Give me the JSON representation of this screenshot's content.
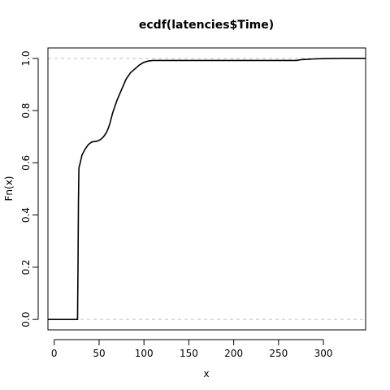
{
  "chart_data": {
    "type": "line",
    "title": "ecdf(latencies$Time)",
    "xlabel": "x",
    "ylabel": "Fn(x)",
    "xlim": [
      -7,
      347
    ],
    "ylim": [
      -0.04,
      1.04
    ],
    "x_ticks": [
      0,
      50,
      100,
      150,
      200,
      250,
      300
    ],
    "x_tick_labels": [
      "0",
      "50",
      "100",
      "150",
      "200",
      "250",
      "300"
    ],
    "y_ticks": [
      0.0,
      0.2,
      0.4,
      0.6,
      0.8,
      1.0
    ],
    "y_tick_labels": [
      "0.0",
      "0.2",
      "0.4",
      "0.6",
      "0.8",
      "1.0"
    ],
    "reference_lines": [
      0,
      1
    ],
    "line_color": "#000000",
    "reference_line_color": "#bebebe",
    "series": [
      {
        "values_xy": [
          [
            -7,
            0.0
          ],
          [
            26,
            0.0
          ],
          [
            26.5,
            0.2
          ],
          [
            27,
            0.45
          ],
          [
            27.5,
            0.58
          ],
          [
            29,
            0.6
          ],
          [
            31,
            0.63
          ],
          [
            34,
            0.65
          ],
          [
            38,
            0.67
          ],
          [
            42,
            0.68
          ],
          [
            48,
            0.683
          ],
          [
            52,
            0.69
          ],
          [
            55,
            0.7
          ],
          [
            58,
            0.715
          ],
          [
            60,
            0.73
          ],
          [
            62,
            0.75
          ],
          [
            65,
            0.79
          ],
          [
            70,
            0.84
          ],
          [
            75,
            0.88
          ],
          [
            80,
            0.92
          ],
          [
            85,
            0.945
          ],
          [
            90,
            0.96
          ],
          [
            95,
            0.975
          ],
          [
            100,
            0.985
          ],
          [
            105,
            0.99
          ],
          [
            110,
            0.992
          ],
          [
            150,
            0.992
          ],
          [
            200,
            0.992
          ],
          [
            250,
            0.992
          ],
          [
            270,
            0.992
          ],
          [
            275,
            0.995
          ],
          [
            290,
            0.998
          ],
          [
            300,
            0.999
          ],
          [
            320,
            1.0
          ],
          [
            347,
            1.0
          ]
        ]
      }
    ]
  }
}
